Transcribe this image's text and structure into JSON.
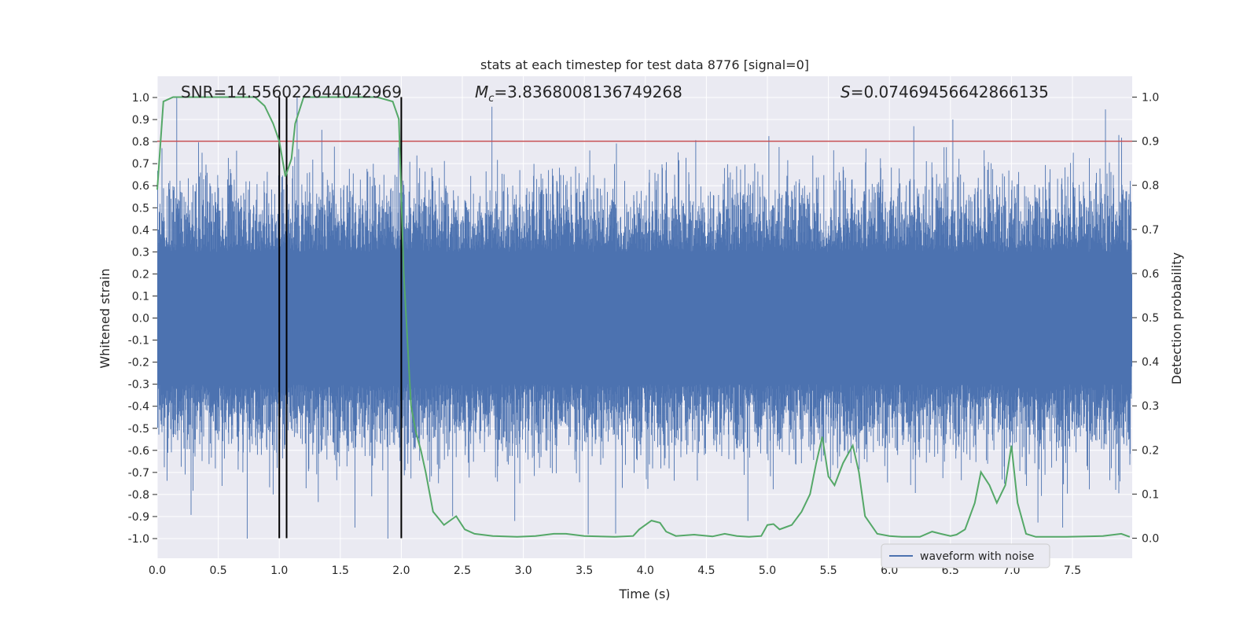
{
  "chart_data": {
    "type": "line",
    "title": "stats at each timestep for test data 8776 [signal=0]",
    "xlabel": "Time (s)",
    "ylabel_left": "Whitened strain",
    "ylabel_right": "Detection probability",
    "xlim": [
      0.0,
      8.0
    ],
    "ylim_left": [
      -1.05,
      1.05
    ],
    "ylim_right": [
      -0.05,
      1.0
    ],
    "xticks": [
      "0.0",
      "0.5",
      "1.0",
      "1.5",
      "2.0",
      "2.5",
      "3.0",
      "3.5",
      "4.0",
      "4.5",
      "5.0",
      "5.5",
      "6.0",
      "6.5",
      "7.0",
      "7.5"
    ],
    "yticks_left": [
      "1.0",
      "0.9",
      "0.8",
      "0.7",
      "0.6",
      "0.5",
      "0.4",
      "0.3",
      "0.2",
      "0.1",
      "0.0",
      "-0.1",
      "-0.2",
      "-0.3",
      "-0.4",
      "-0.5",
      "-0.6",
      "-0.7",
      "-0.8",
      "-0.9",
      "-1.0"
    ],
    "yticks_right": [
      "1.0",
      "0.9",
      "0.8",
      "0.7",
      "0.6",
      "0.5",
      "0.4",
      "0.3",
      "0.2",
      "0.1",
      "0.0"
    ],
    "annotations": {
      "snr": "SNR=14.556022644042969",
      "mc_symbol": "M",
      "mc_sub": "c",
      "mc_value": "=3.8368008136749268",
      "s_symbol": "S",
      "s_value": "=0.07469456642866135"
    },
    "legend": {
      "label": "waveform with noise",
      "placement": "lower-right"
    },
    "threshold": {
      "value": 0.9,
      "axis": "right",
      "color": "#c44e52"
    },
    "vertical_lines": [
      1.0,
      1.06,
      2.0
    ],
    "colors": {
      "waveform": "#4c72b0",
      "probability": "#55a868",
      "threshold": "#c44e52",
      "vlines": "#000000",
      "plot_bg": "#eaeaf2",
      "grid": "#ffffff"
    },
    "series": [
      {
        "name": "waveform with noise",
        "axis": "left",
        "description_of_envelope": "dense whitened strain noise, approx ±0.3 to ±0.6 with spikes up to ±1.0",
        "notable_peaks": [
          {
            "x": 0.16,
            "y": 1.0
          },
          {
            "x": 0.95,
            "y": -0.8
          },
          {
            "x": 1.62,
            "y": -0.95
          },
          {
            "x": 2.93,
            "y": -0.92
          },
          {
            "x": 4.84,
            "y": -0.92
          },
          {
            "x": 6.52,
            "y": 0.9
          },
          {
            "x": 6.2,
            "y": 0.87
          },
          {
            "x": 7.42,
            "y": -0.95
          },
          {
            "x": 7.88,
            "y": 0.83
          }
        ]
      },
      {
        "name": "detection probability",
        "axis": "right",
        "x": [
          0.0,
          0.05,
          0.13,
          0.5,
          0.8,
          0.88,
          0.95,
          1.0,
          1.05,
          1.1,
          1.13,
          1.2,
          1.4,
          1.6,
          1.8,
          1.93,
          1.98,
          2.02,
          2.08,
          2.12,
          2.16,
          2.2,
          2.26,
          2.35,
          2.45,
          2.52,
          2.6,
          2.75,
          2.95,
          3.1,
          3.25,
          3.35,
          3.5,
          3.75,
          3.9,
          3.95,
          4.05,
          4.12,
          4.17,
          4.25,
          4.4,
          4.55,
          4.65,
          4.75,
          4.85,
          4.95,
          5.0,
          5.05,
          5.1,
          5.15,
          5.2,
          5.28,
          5.35,
          5.4,
          5.45,
          5.5,
          5.55,
          5.62,
          5.7,
          5.75,
          5.8,
          5.9,
          6.0,
          6.1,
          6.25,
          6.35,
          6.42,
          6.5,
          6.55,
          6.62,
          6.7,
          6.75,
          6.82,
          6.88,
          6.95,
          7.0,
          7.05,
          7.12,
          7.2,
          7.45,
          7.75,
          7.9,
          7.97
        ],
        "y": [
          0.79,
          0.99,
          1.0,
          1.0,
          1.0,
          0.98,
          0.94,
          0.9,
          0.82,
          0.86,
          0.94,
          1.0,
          1.0,
          1.0,
          1.0,
          0.99,
          0.95,
          0.6,
          0.3,
          0.24,
          0.2,
          0.15,
          0.06,
          0.03,
          0.05,
          0.02,
          0.01,
          0.005,
          0.003,
          0.005,
          0.01,
          0.01,
          0.005,
          0.003,
          0.005,
          0.02,
          0.04,
          0.035,
          0.015,
          0.005,
          0.008,
          0.004,
          0.01,
          0.005,
          0.003,
          0.005,
          0.03,
          0.032,
          0.02,
          0.025,
          0.03,
          0.06,
          0.1,
          0.17,
          0.23,
          0.14,
          0.12,
          0.17,
          0.21,
          0.15,
          0.05,
          0.01,
          0.005,
          0.003,
          0.003,
          0.015,
          0.01,
          0.005,
          0.008,
          0.02,
          0.08,
          0.15,
          0.12,
          0.08,
          0.12,
          0.21,
          0.08,
          0.01,
          0.003,
          0.003,
          0.005,
          0.01,
          0.003
        ]
      }
    ]
  }
}
